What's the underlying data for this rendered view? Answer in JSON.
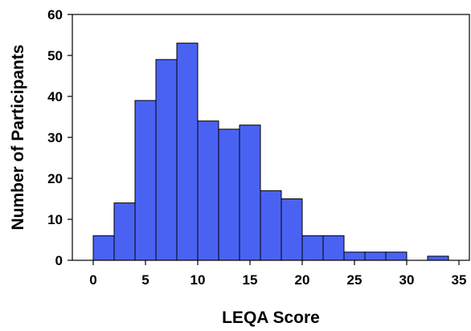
{
  "chart_data": {
    "type": "bar",
    "title": "",
    "xlabel": "LEQA Score",
    "ylabel": "Number of Participants",
    "bin_width": 2,
    "bins": [
      {
        "start": 0,
        "end": 2,
        "value": 6
      },
      {
        "start": 2,
        "end": 4,
        "value": 14
      },
      {
        "start": 4,
        "end": 6,
        "value": 39
      },
      {
        "start": 6,
        "end": 8,
        "value": 49
      },
      {
        "start": 8,
        "end": 10,
        "value": 53
      },
      {
        "start": 10,
        "end": 12,
        "value": 34
      },
      {
        "start": 12,
        "end": 14,
        "value": 32
      },
      {
        "start": 14,
        "end": 16,
        "value": 33
      },
      {
        "start": 16,
        "end": 18,
        "value": 17
      },
      {
        "start": 18,
        "end": 20,
        "value": 15
      },
      {
        "start": 20,
        "end": 22,
        "value": 6
      },
      {
        "start": 22,
        "end": 24,
        "value": 6
      },
      {
        "start": 24,
        "end": 26,
        "value": 2
      },
      {
        "start": 26,
        "end": 28,
        "value": 2
      },
      {
        "start": 28,
        "end": 30,
        "value": 2
      },
      {
        "start": 30,
        "end": 32,
        "value": 0
      },
      {
        "start": 32,
        "end": 34,
        "value": 1
      }
    ],
    "xlim": [
      -2,
      36
    ],
    "ylim": [
      0,
      60
    ],
    "x_ticks": [
      0,
      5,
      10,
      15,
      20,
      25,
      30,
      35
    ],
    "x_tick_labels": [
      "0",
      "5",
      "10",
      "15",
      "20",
      "25",
      "30",
      "35"
    ],
    "y_ticks": [
      0,
      10,
      20,
      30,
      40,
      50,
      60
    ],
    "y_tick_labels": [
      "0",
      "10",
      "20",
      "30",
      "40",
      "50",
      "60"
    ],
    "grid": false,
    "legend": "none",
    "colors": {
      "bar_fill": "#4a62f2",
      "bar_stroke": "#000000",
      "axis": "#000000"
    }
  }
}
